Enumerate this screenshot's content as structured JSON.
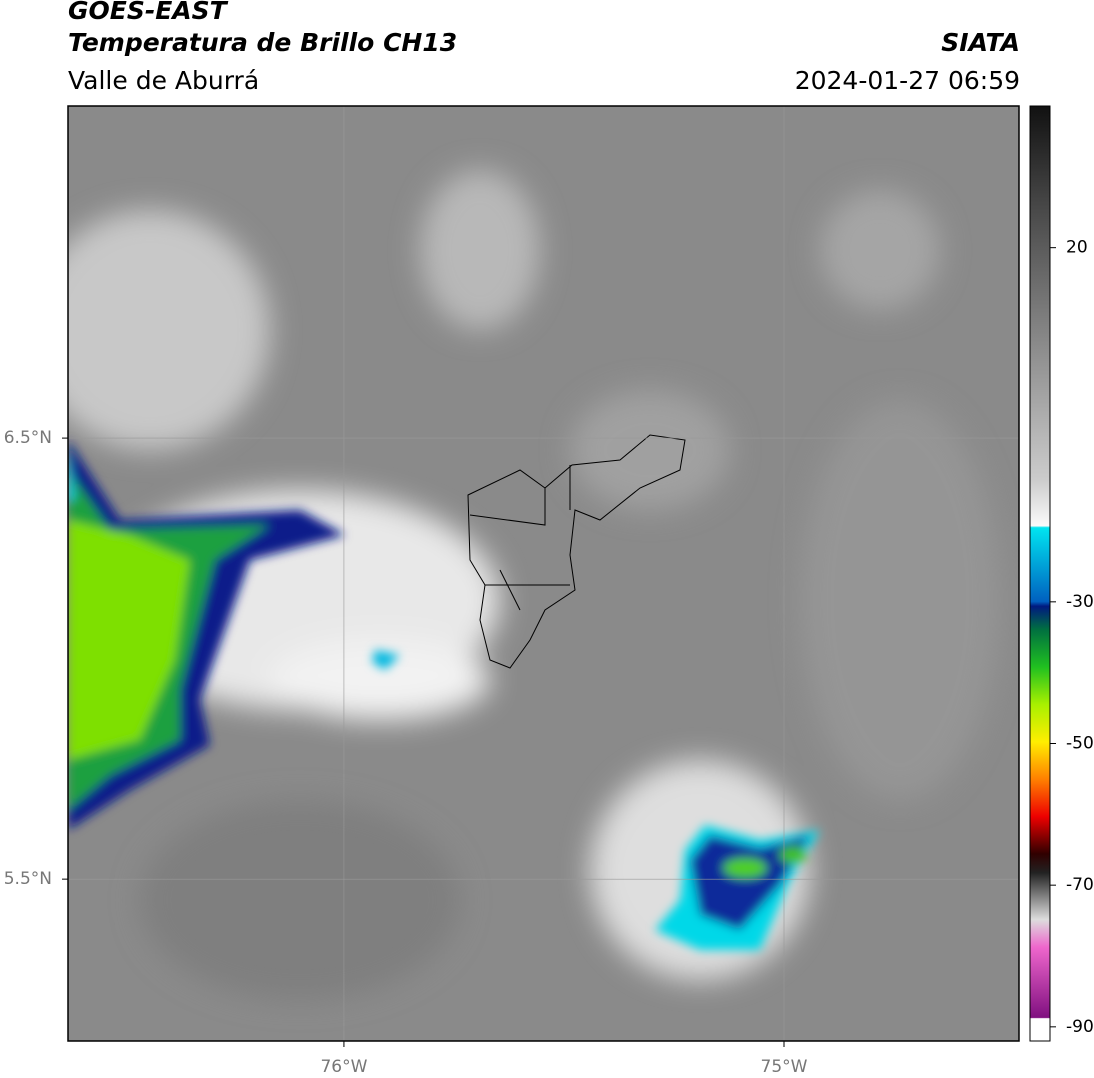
{
  "header": {
    "satellite": "GOES-EAST",
    "product": "Temperatura de Brillo CH13",
    "region": "Valle de Aburrá",
    "source": "SIATA",
    "datetime": "2024-01-27 06:59"
  },
  "map": {
    "xlim": [
      -76.627,
      -74.466
    ],
    "ylim": [
      5.133,
      7.253
    ],
    "xticks": [
      {
        "value": -76,
        "label": "76°W"
      },
      {
        "value": -75,
        "label": "75°W"
      }
    ],
    "yticks": [
      {
        "value": 6.5,
        "label": "6.5°N"
      },
      {
        "value": 5.5,
        "label": "5.5°N"
      }
    ],
    "grid": true
  },
  "colorbar": {
    "range": [
      -92,
      40
    ],
    "ticks": [
      20,
      -30,
      -50,
      -70,
      -90
    ]
  }
}
